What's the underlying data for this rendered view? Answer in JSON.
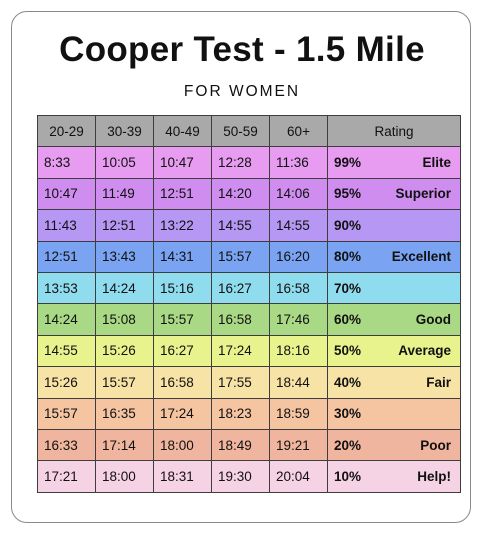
{
  "title": "Cooper Test - 1.5 Mile",
  "subtitle": "FOR WOMEN",
  "headers": [
    "20-29",
    "30-39",
    "40-49",
    "50-59",
    "60+",
    "Rating"
  ],
  "rows": [
    {
      "times": [
        "8:33",
        "10:05",
        "10:47",
        "12:28",
        "11:36"
      ],
      "percent": "99%",
      "label": "Elite",
      "color": "#e79cf1"
    },
    {
      "times": [
        "10:47",
        "11:49",
        "12:51",
        "14:20",
        "14:06"
      ],
      "percent": "95%",
      "label": "Superior",
      "color": "#d08df0"
    },
    {
      "times": [
        "11:43",
        "12:51",
        "13:22",
        "14:55",
        "14:55"
      ],
      "percent": "90%",
      "label": "",
      "color": "#b697f3"
    },
    {
      "times": [
        "12:51",
        "13:43",
        "14:31",
        "15:57",
        "16:20"
      ],
      "percent": "80%",
      "label": "Excellent",
      "color": "#7aa3f2"
    },
    {
      "times": [
        "13:53",
        "14:24",
        "15:16",
        "16:27",
        "16:58"
      ],
      "percent": "70%",
      "label": "",
      "color": "#90dcef"
    },
    {
      "times": [
        "14:24",
        "15:08",
        "15:57",
        "16:58",
        "17:46"
      ],
      "percent": "60%",
      "label": "Good",
      "color": "#a9d984"
    },
    {
      "times": [
        "14:55",
        "15:26",
        "16:27",
        "17:24",
        "18:16"
      ],
      "percent": "50%",
      "label": "Average",
      "color": "#e9f38e"
    },
    {
      "times": [
        "15:26",
        "15:57",
        "16:58",
        "17:55",
        "18:44"
      ],
      "percent": "40%",
      "label": "Fair",
      "color": "#f7e3a5"
    },
    {
      "times": [
        "15:57",
        "16:35",
        "17:24",
        "18:23",
        "18:59"
      ],
      "percent": "30%",
      "label": "",
      "color": "#f5c4a1"
    },
    {
      "times": [
        "16:33",
        "17:14",
        "18:00",
        "18:49",
        "19:21"
      ],
      "percent": "20%",
      "label": "Poor",
      "color": "#f0b59e"
    },
    {
      "times": [
        "17:21",
        "18:00",
        "18:31",
        "19:30",
        "20:04"
      ],
      "percent": "10%",
      "label": "Help!",
      "color": "#f5d3e4"
    }
  ]
}
